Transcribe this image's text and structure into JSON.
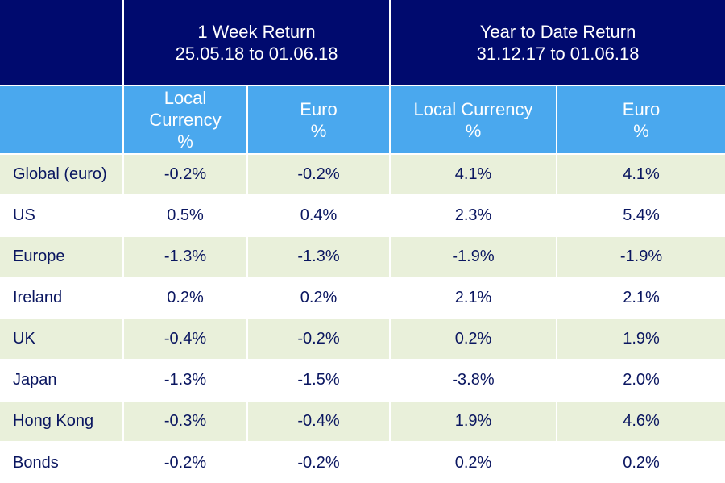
{
  "chart_data": {
    "type": "table",
    "header_groups": [
      {
        "line1": "",
        "line2": ""
      },
      {
        "line1": "1 Week Return",
        "line2": "25.05.18 to 01.06.18"
      },
      {
        "line1": "Year to Date Return",
        "line2": "31.12.17 to 01.06.18"
      }
    ],
    "subheaders": [
      {
        "lines": [
          "Local",
          "Currency",
          "%"
        ]
      },
      {
        "lines": [
          "Euro",
          "%"
        ]
      },
      {
        "lines": [
          "Local Currency",
          "%"
        ]
      },
      {
        "lines": [
          "Euro",
          "%"
        ]
      }
    ],
    "rows": [
      {
        "region": "Global (euro)",
        "values": [
          "-0.2%",
          "-0.2%",
          "4.1%",
          "4.1%"
        ]
      },
      {
        "region": "US",
        "values": [
          "0.5%",
          "0.4%",
          "2.3%",
          "5.4%"
        ]
      },
      {
        "region": "Europe",
        "values": [
          "-1.3%",
          "-1.3%",
          "-1.9%",
          "-1.9%"
        ]
      },
      {
        "region": "Ireland",
        "values": [
          "0.2%",
          "0.2%",
          "2.1%",
          "2.1%"
        ]
      },
      {
        "region": "UK",
        "values": [
          "-0.4%",
          "-0.2%",
          "0.2%",
          "1.9%"
        ]
      },
      {
        "region": "Japan",
        "values": [
          "-1.3%",
          "-1.5%",
          "-3.8%",
          "2.0%"
        ]
      },
      {
        "region": "Hong Kong",
        "values": [
          "-0.3%",
          "-0.4%",
          "1.9%",
          "4.6%"
        ]
      },
      {
        "region": "Bonds",
        "values": [
          "-0.2%",
          "-0.2%",
          "0.2%",
          "0.2%"
        ]
      }
    ],
    "colors": {
      "group_header_bg": "#000a6e",
      "subheader_bg": "#4aa8ee",
      "band_bg": "#e9f0da",
      "text": "#0a1660"
    }
  }
}
